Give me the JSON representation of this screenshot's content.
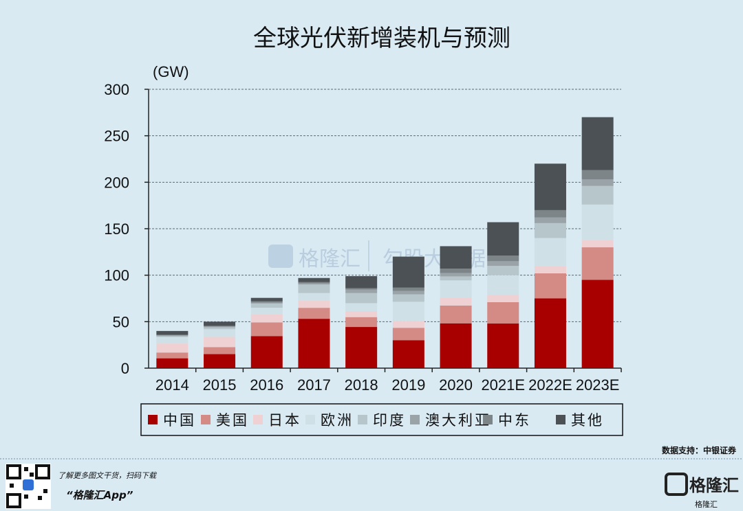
{
  "chart_data": {
    "type": "bar",
    "stacked": true,
    "title": "全球光伏新增装机与预测",
    "unit": "(GW)",
    "categories": [
      "2014",
      "2015",
      "2016",
      "2017",
      "2018",
      "2019",
      "2020",
      "2021E",
      "2022E",
      "2023E"
    ],
    "ylim": [
      0,
      300
    ],
    "yticks": [
      0,
      50,
      100,
      150,
      200,
      250,
      300
    ],
    "grid": true,
    "legend_position": "bottom",
    "series": [
      {
        "name": "中国",
        "color": "#a80000",
        "values": [
          10.6,
          15.1,
          34.5,
          53.1,
          44.3,
          30.1,
          48.2,
          48,
          75,
          95
        ]
      },
      {
        "name": "美国",
        "color": "#d48a85",
        "values": [
          6.2,
          7.5,
          14.7,
          11.8,
          10.6,
          13.3,
          19.2,
          23,
          27,
          35
        ]
      },
      {
        "name": "日本",
        "color": "#efd1d3",
        "values": [
          9.7,
          11,
          8.6,
          7.5,
          6.5,
          7,
          8.2,
          8,
          8,
          8
        ]
      },
      {
        "name": "欧洲",
        "color": "#cfe0e7",
        "values": [
          7,
          8.3,
          7.2,
          8.4,
          8.5,
          21,
          18.8,
          21,
          30,
          38
        ]
      },
      {
        "name": "印度",
        "color": "#b7c6cb",
        "values": [
          0.9,
          2,
          4.5,
          9.1,
          10.8,
          8,
          4.3,
          10,
          16,
          20
        ]
      },
      {
        "name": "澳大利亚",
        "color": "#9aa4a8",
        "values": [
          0.9,
          0.9,
          1,
          1.3,
          3.8,
          3.7,
          3.7,
          5,
          6,
          7
        ]
      },
      {
        "name": "中东",
        "color": "#7e8589",
        "values": [
          0.6,
          0.7,
          1.5,
          1.3,
          1.5,
          3.5,
          4.6,
          6,
          8,
          10
        ]
      },
      {
        "name": "其他",
        "color": "#4b5155",
        "values": [
          4.1,
          4.5,
          3.6,
          4.5,
          13,
          33.4,
          24.2,
          36,
          50,
          57
        ]
      }
    ]
  },
  "source": "数据支持：中银证券",
  "watermark": {
    "left": "格隆汇",
    "right": "勾股大数据"
  },
  "footer": {
    "cta": "了解更多图文干货，扫码下载",
    "app": "“格隆汇App”",
    "brand": "格隆汇",
    "brand_sub": "格隆汇"
  }
}
